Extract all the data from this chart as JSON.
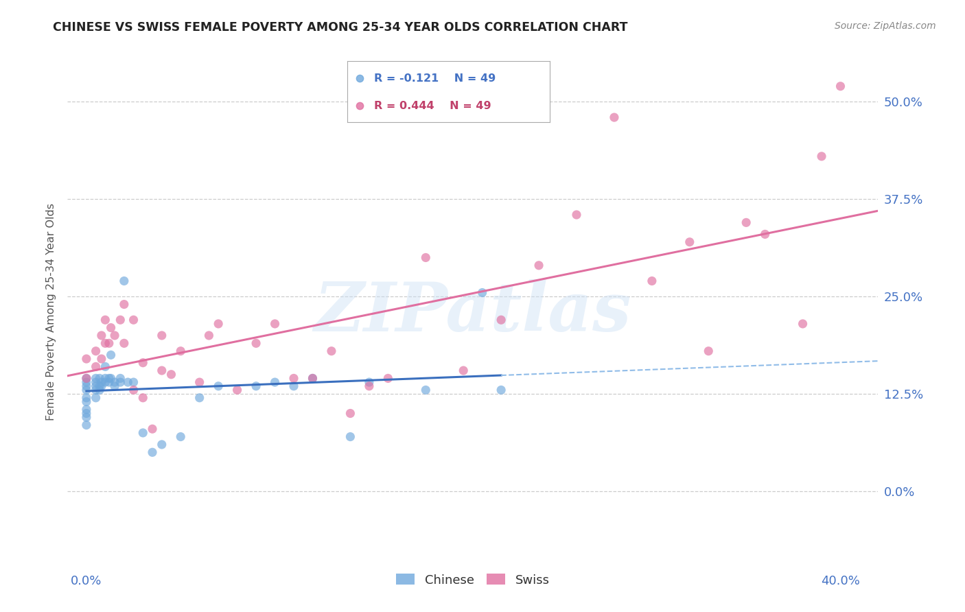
{
  "title": "CHINESE VS SWISS FEMALE POVERTY AMONG 25-34 YEAR OLDS CORRELATION CHART",
  "source": "Source: ZipAtlas.com",
  "ylabel": "Female Poverty Among 25-34 Year Olds",
  "x_min": -0.01,
  "x_max": 0.42,
  "y_min": -0.1,
  "y_max": 0.56,
  "ytick_labels": [
    "0.0%",
    "12.5%",
    "25.0%",
    "37.5%",
    "50.0%"
  ],
  "ytick_values": [
    0.0,
    0.125,
    0.25,
    0.375,
    0.5
  ],
  "xtick_labels": [
    "0.0%",
    "40.0%"
  ],
  "xtick_values": [
    0.0,
    0.4
  ],
  "chinese_color": "#6fa8dc",
  "swiss_color": "#e06fa0",
  "chinese_line_color": "#3a6fbe",
  "chinese_dash_color": "#90bce8",
  "swiss_line_color": "#e06fa0",
  "chinese_R": -0.121,
  "swiss_R": 0.444,
  "N": 49,
  "watermark_text": "ZIPatlas",
  "chinese_points_x": [
    0.0,
    0.0,
    0.0,
    0.0,
    0.0,
    0.0,
    0.0,
    0.0,
    0.0,
    0.0,
    0.005,
    0.005,
    0.005,
    0.005,
    0.005,
    0.007,
    0.007,
    0.007,
    0.008,
    0.008,
    0.01,
    0.01,
    0.01,
    0.012,
    0.012,
    0.013,
    0.013,
    0.015,
    0.015,
    0.018,
    0.018,
    0.02,
    0.022,
    0.025,
    0.03,
    0.035,
    0.04,
    0.05,
    0.06,
    0.07,
    0.09,
    0.1,
    0.11,
    0.12,
    0.14,
    0.15,
    0.18,
    0.21,
    0.22
  ],
  "chinese_points_y": [
    0.14,
    0.135,
    0.145,
    0.13,
    0.12,
    0.115,
    0.105,
    0.1,
    0.095,
    0.085,
    0.13,
    0.14,
    0.145,
    0.135,
    0.12,
    0.135,
    0.145,
    0.13,
    0.14,
    0.135,
    0.145,
    0.14,
    0.16,
    0.14,
    0.145,
    0.145,
    0.175,
    0.135,
    0.14,
    0.14,
    0.145,
    0.27,
    0.14,
    0.14,
    0.075,
    0.05,
    0.06,
    0.07,
    0.12,
    0.135,
    0.135,
    0.14,
    0.135,
    0.145,
    0.07,
    0.14,
    0.13,
    0.255,
    0.13
  ],
  "swiss_points_x": [
    0.0,
    0.0,
    0.005,
    0.005,
    0.008,
    0.008,
    0.01,
    0.01,
    0.012,
    0.013,
    0.015,
    0.018,
    0.02,
    0.02,
    0.025,
    0.025,
    0.03,
    0.03,
    0.035,
    0.04,
    0.04,
    0.045,
    0.05,
    0.06,
    0.065,
    0.07,
    0.08,
    0.09,
    0.1,
    0.11,
    0.12,
    0.13,
    0.14,
    0.15,
    0.16,
    0.18,
    0.2,
    0.22,
    0.24,
    0.26,
    0.28,
    0.3,
    0.32,
    0.33,
    0.35,
    0.36,
    0.38,
    0.39,
    0.4
  ],
  "swiss_points_y": [
    0.145,
    0.17,
    0.16,
    0.18,
    0.17,
    0.2,
    0.19,
    0.22,
    0.19,
    0.21,
    0.2,
    0.22,
    0.19,
    0.24,
    0.13,
    0.22,
    0.12,
    0.165,
    0.08,
    0.155,
    0.2,
    0.15,
    0.18,
    0.14,
    0.2,
    0.215,
    0.13,
    0.19,
    0.215,
    0.145,
    0.145,
    0.18,
    0.1,
    0.135,
    0.145,
    0.3,
    0.155,
    0.22,
    0.29,
    0.355,
    0.48,
    0.27,
    0.32,
    0.18,
    0.345,
    0.33,
    0.215,
    0.43,
    0.52
  ]
}
